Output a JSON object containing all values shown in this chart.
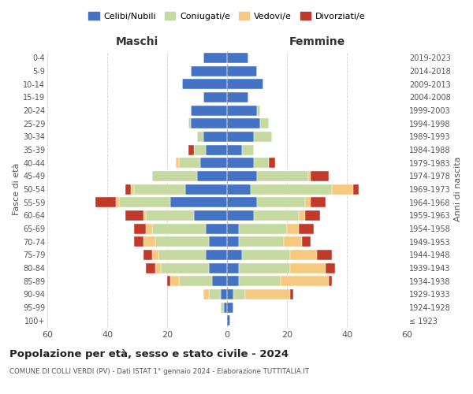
{
  "age_groups": [
    "100+",
    "95-99",
    "90-94",
    "85-89",
    "80-84",
    "75-79",
    "70-74",
    "65-69",
    "60-64",
    "55-59",
    "50-54",
    "45-49",
    "40-44",
    "35-39",
    "30-34",
    "25-29",
    "20-24",
    "15-19",
    "10-14",
    "5-9",
    "0-4"
  ],
  "birth_years": [
    "≤ 1923",
    "1924-1928",
    "1929-1933",
    "1934-1938",
    "1939-1943",
    "1944-1948",
    "1949-1953",
    "1954-1958",
    "1959-1963",
    "1964-1968",
    "1969-1973",
    "1974-1978",
    "1979-1983",
    "1984-1988",
    "1989-1993",
    "1994-1998",
    "1999-2003",
    "2004-2008",
    "2009-2013",
    "2014-2018",
    "2019-2023"
  ],
  "colors": {
    "celibi": "#4472C4",
    "coniugati": "#c5d9a0",
    "vedovi": "#f5c97f",
    "divorziati": "#c0392b"
  },
  "males": {
    "celibi": [
      0,
      1,
      2,
      5,
      6,
      7,
      6,
      7,
      11,
      19,
      14,
      10,
      9,
      7,
      8,
      12,
      12,
      8,
      15,
      12,
      8
    ],
    "coniugati": [
      0,
      1,
      4,
      11,
      16,
      16,
      18,
      18,
      16,
      17,
      17,
      15,
      7,
      4,
      2,
      1,
      0,
      0,
      0,
      0,
      0
    ],
    "vedovi": [
      0,
      0,
      2,
      3,
      2,
      2,
      4,
      2,
      1,
      1,
      1,
      0,
      1,
      0,
      0,
      0,
      0,
      0,
      0,
      0,
      0
    ],
    "divorziati": [
      0,
      0,
      0,
      1,
      3,
      3,
      3,
      4,
      6,
      7,
      2,
      0,
      0,
      2,
      0,
      0,
      0,
      0,
      0,
      0,
      0
    ]
  },
  "females": {
    "celibi": [
      1,
      2,
      2,
      4,
      4,
      5,
      4,
      4,
      9,
      10,
      8,
      10,
      9,
      5,
      9,
      11,
      10,
      7,
      12,
      10,
      7
    ],
    "coniugati": [
      0,
      0,
      4,
      14,
      17,
      16,
      15,
      16,
      15,
      16,
      27,
      17,
      5,
      4,
      6,
      3,
      1,
      0,
      0,
      0,
      0
    ],
    "vedovi": [
      0,
      0,
      15,
      16,
      12,
      9,
      6,
      4,
      2,
      2,
      7,
      1,
      0,
      0,
      0,
      0,
      0,
      0,
      0,
      0,
      0
    ],
    "divorziati": [
      0,
      0,
      1,
      1,
      3,
      5,
      3,
      5,
      5,
      5,
      2,
      6,
      2,
      0,
      0,
      0,
      0,
      0,
      0,
      0,
      0
    ]
  },
  "title": "Popolazione per età, sesso e stato civile - 2024",
  "subtitle": "COMUNE DI COLLI VERDI (PV) - Dati ISTAT 1° gennaio 2024 - Elaborazione TUTTITALIA.IT",
  "legend_labels": [
    "Celibi/Nubili",
    "Coniugati/e",
    "Vedovi/e",
    "Divorziati/e"
  ],
  "xlabel_left": "Maschi",
  "xlabel_right": "Femmine",
  "ylabel_left": "Fasce di età",
  "ylabel_right": "Anni di nascita",
  "xlim": 60,
  "background_color": "#ffffff",
  "grid_color": "#cccccc"
}
